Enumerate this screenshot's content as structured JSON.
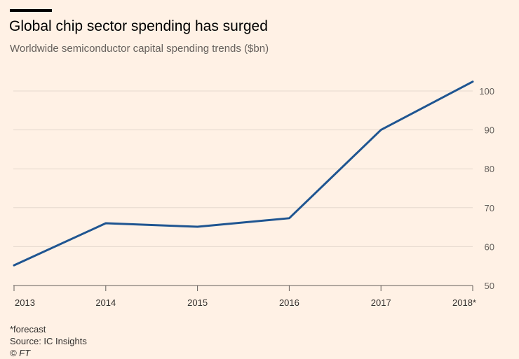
{
  "header": {
    "title": "Global chip sector spending has surged",
    "subtitle": "Worldwide semiconductor capital spending trends ($bn)"
  },
  "chart_data": {
    "type": "line",
    "title": "Global chip sector spending has surged",
    "subtitle": "Worldwide semiconductor capital spending trends ($bn)",
    "xlabel": "",
    "ylabel": "$bn",
    "categories": [
      "2013",
      "2014",
      "2015",
      "2016",
      "2017",
      "2018*"
    ],
    "series": [
      {
        "name": "Semiconductor capital spending",
        "values": [
          55.2,
          66.0,
          65.1,
          67.3,
          90.0,
          102.4
        ]
      }
    ],
    "yticks": [
      50,
      60,
      70,
      80,
      90,
      100
    ],
    "ylim": [
      50,
      102.4
    ],
    "grid": true,
    "y_axis_side": "right",
    "line_color": "#1f5591"
  },
  "footer": {
    "note": "*forecast",
    "source": "Source: IC Insights",
    "credit": "© FT"
  }
}
